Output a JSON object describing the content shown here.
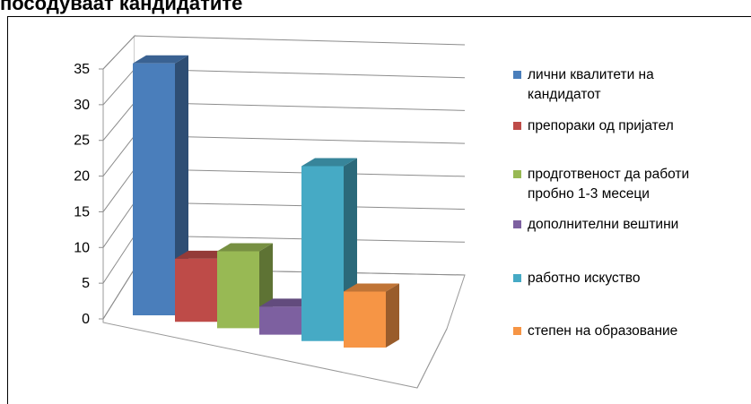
{
  "page": {
    "title": "посодуваат кандидатите"
  },
  "chart_data": {
    "type": "bar",
    "title": "",
    "xlabel": "",
    "ylabel": "",
    "ylim": [
      0,
      35
    ],
    "yticks": [
      "0",
      "5",
      "10",
      "15",
      "20",
      "25",
      "30",
      "35"
    ],
    "grid": true,
    "projection": "3d",
    "legend_position": "right",
    "categories": [
      "лични квалитети на кандидатот",
      "препораки од пријател",
      "продготвеност да работи пробно 1-3 месеци",
      "дополнителни вештини",
      "работно искуство",
      "степен на образование"
    ],
    "values": [
      36,
      9,
      11,
      4,
      25,
      8
    ],
    "colors": [
      "#4a7ebb",
      "#be4b48",
      "#98b954",
      "#7d60a0",
      "#46aac5",
      "#f69545"
    ],
    "legend": [
      {
        "lines": [
          "лични квалитети на",
          "кандидатот"
        ]
      },
      {
        "lines": [
          "препораки од пријател"
        ]
      },
      {
        "lines": [
          "продготвеност да работи",
          "пробно 1-3 месеци"
        ]
      },
      {
        "lines": [
          "дополнителни вештини"
        ]
      },
      {
        "lines": [
          "работно искуство"
        ]
      },
      {
        "lines": [
          "степен на образование"
        ]
      }
    ]
  }
}
